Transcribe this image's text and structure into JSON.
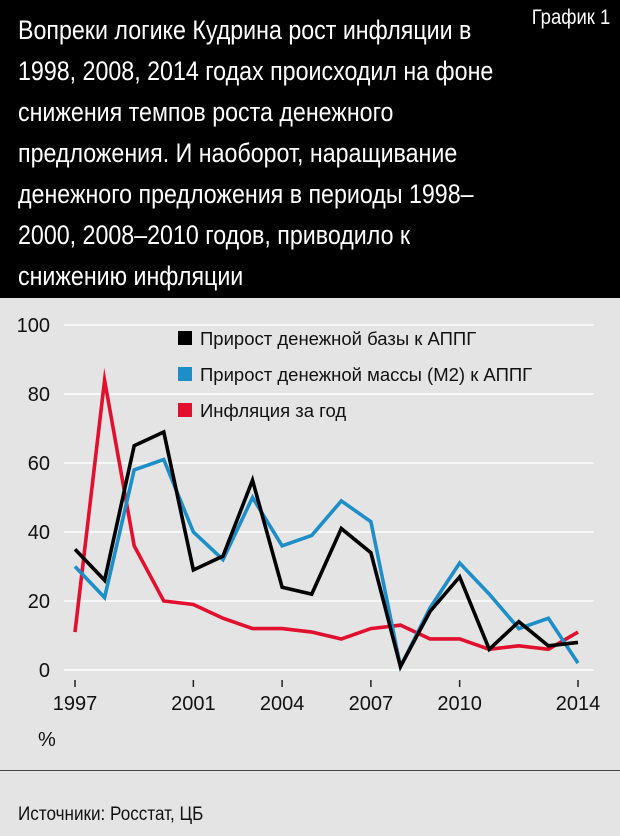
{
  "header": {
    "title": "Вопреки логике Кудрина рост инфляции в 1998, 2008, 2014 годах происходил на фоне снижения темпов роста денежного предложения. И наоборот, наращивание денежного предложения в периоды 1998–2000, 2008–2010 годов, приводило к снижению инфляции",
    "tag": "График 1"
  },
  "footer": {
    "source": "Источники: Росстат, ЦБ"
  },
  "chart_data": {
    "type": "line",
    "x": [
      1997,
      1998,
      1999,
      2000,
      2001,
      2002,
      2003,
      2004,
      2005,
      2006,
      2007,
      2008,
      2009,
      2010,
      2011,
      2012,
      2013,
      2014
    ],
    "xticks": [
      1997,
      2001,
      2004,
      2007,
      2010,
      2014
    ],
    "yticks": [
      0,
      20,
      40,
      60,
      80,
      100
    ],
    "ylim": [
      0,
      100
    ],
    "xlim": [
      1997,
      2014
    ],
    "unit_label": "%",
    "grid": "horizontal",
    "legend_placement": "top",
    "series": [
      {
        "name": "Прирост денежной базы к АППГ",
        "color": "#000000",
        "values": [
          35,
          26,
          65,
          69,
          29,
          33,
          55,
          24,
          22,
          41,
          34,
          1,
          17,
          27,
          6,
          14,
          7,
          8
        ]
      },
      {
        "name": "Прирост денежной массы (М2) к АППГ",
        "color": "#1e8fc6",
        "values": [
          30,
          21,
          58,
          61,
          40,
          32,
          50,
          36,
          39,
          49,
          43,
          1,
          18,
          31,
          22,
          12,
          15,
          2
        ]
      },
      {
        "name": "Инфляция за год",
        "color": "#e0102e",
        "values": [
          11,
          84,
          36,
          20,
          19,
          15,
          12,
          12,
          11,
          9,
          12,
          13,
          9,
          9,
          6,
          7,
          6,
          11
        ]
      }
    ]
  }
}
